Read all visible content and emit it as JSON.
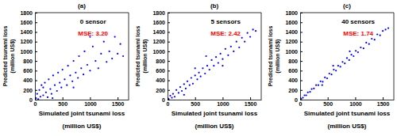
{
  "chart_data": [
    {
      "type": "scatter",
      "title": "(a)",
      "x_label": [
        "Simulated joint tsunami loss",
        "(million US$)"
      ],
      "y_label": [
        "Predicted tsunami loss",
        "(million US$)"
      ],
      "annotations": [
        {
          "text": "0 sensor",
          "color": "#000000"
        },
        {
          "text": "MSE: 3.20",
          "color": "#ff0000"
        }
      ],
      "color": "#0000ff",
      "marker": "dot",
      "grid": false,
      "xlim": [
        0,
        1700
      ],
      "ylim": [
        0,
        1800
      ],
      "xticks": [
        0,
        500,
        1000,
        1500
      ],
      "yticks": [
        0,
        200,
        400,
        600,
        800,
        1000,
        1200,
        1400,
        1600,
        1800
      ],
      "x": [
        20,
        40,
        60,
        80,
        100,
        120,
        150,
        180,
        200,
        230,
        250,
        280,
        300,
        330,
        360,
        400,
        420,
        450,
        480,
        500,
        540,
        580,
        600,
        640,
        680,
        700,
        740,
        780,
        800,
        840,
        880,
        900,
        950,
        1000,
        1050,
        1100,
        1150,
        1200,
        1250,
        1300,
        1350,
        1400,
        1450,
        1500,
        1550,
        1600,
        320,
        150,
        700,
        1000
      ],
      "values": [
        30,
        120,
        10,
        200,
        60,
        300,
        90,
        350,
        150,
        50,
        420,
        220,
        120,
        500,
        300,
        180,
        560,
        350,
        250,
        620,
        420,
        300,
        700,
        500,
        380,
        800,
        560,
        450,
        900,
        650,
        520,
        1000,
        720,
        600,
        1100,
        800,
        650,
        950,
        1200,
        780,
        1000,
        850,
        1300,
        950,
        1150,
        900,
        30,
        250,
        250,
        1300
      ]
    },
    {
      "type": "scatter",
      "title": "(b)",
      "x_label": [
        "Simulated joint tsunami loss",
        "(million US$)"
      ],
      "y_label": [
        "Predicted tsunami loss",
        "(million US$)"
      ],
      "annotations": [
        {
          "text": "5 sensors",
          "color": "#000000"
        },
        {
          "text": "MSE: 2.42",
          "color": "#ff0000"
        }
      ],
      "color": "#0000ff",
      "marker": "dot",
      "grid": false,
      "xlim": [
        0,
        1700
      ],
      "ylim": [
        0,
        1800
      ],
      "xticks": [
        0,
        500,
        1000,
        1500
      ],
      "yticks": [
        0,
        200,
        400,
        600,
        800,
        1000,
        1200,
        1400,
        1600,
        1800
      ],
      "x": [
        20,
        50,
        80,
        100,
        130,
        160,
        200,
        230,
        260,
        300,
        330,
        360,
        400,
        430,
        460,
        500,
        540,
        570,
        600,
        640,
        680,
        720,
        760,
        800,
        840,
        880,
        920,
        960,
        1000,
        1050,
        1100,
        1150,
        1200,
        1250,
        1300,
        1350,
        1400,
        1450,
        1500,
        1550,
        1600,
        300,
        700,
        1000,
        500
      ],
      "values": [
        15,
        80,
        40,
        120,
        60,
        200,
        140,
        260,
        180,
        320,
        230,
        380,
        300,
        450,
        330,
        500,
        420,
        560,
        480,
        650,
        540,
        700,
        620,
        820,
        700,
        880,
        760,
        950,
        840,
        1050,
        920,
        1100,
        1000,
        1200,
        1080,
        1280,
        1200,
        1380,
        1300,
        1450,
        1420,
        100,
        900,
        700,
        650
      ]
    },
    {
      "type": "scatter",
      "title": "(c)",
      "x_label": [
        "Simulated joint tsunami loss",
        "(million US$)"
      ],
      "y_label": [
        "Predicted tsunami loss",
        "(million US$)"
      ],
      "annotations": [
        {
          "text": "40 sensors",
          "color": "#000000"
        },
        {
          "text": "MSE: 1.74",
          "color": "#ff0000"
        }
      ],
      "color": "#0000ff",
      "marker": "dot",
      "grid": false,
      "xlim": [
        0,
        1700
      ],
      "ylim": [
        0,
        1800
      ],
      "xticks": [
        0,
        500,
        1000,
        1500
      ],
      "yticks": [
        0,
        200,
        400,
        600,
        800,
        1000,
        1200,
        1400,
        1600,
        1800
      ],
      "x": [
        20,
        50,
        80,
        110,
        140,
        180,
        210,
        250,
        290,
        330,
        370,
        410,
        450,
        490,
        530,
        570,
        610,
        650,
        690,
        730,
        770,
        810,
        850,
        890,
        930,
        970,
        1010,
        1050,
        1100,
        1150,
        1200,
        1250,
        1300,
        1350,
        1400,
        1450,
        1500,
        1550,
        1600,
        600,
        900,
        400
      ],
      "values": [
        20,
        40,
        90,
        90,
        150,
        160,
        220,
        230,
        300,
        300,
        380,
        370,
        460,
        440,
        540,
        520,
        620,
        600,
        700,
        680,
        780,
        750,
        860,
        820,
        930,
        900,
        1010,
        980,
        1080,
        1060,
        1180,
        1150,
        1260,
        1240,
        1350,
        1330,
        1420,
        1450,
        1480,
        700,
        1000,
        300
      ]
    }
  ]
}
